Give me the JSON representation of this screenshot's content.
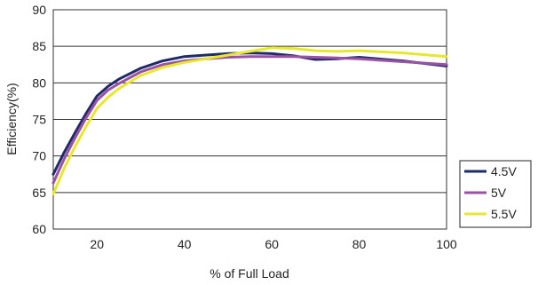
{
  "chart_data": {
    "type": "line",
    "xlabel": "% of Full Load",
    "ylabel": "Efficiency(%)",
    "xlim": [
      10,
      100
    ],
    "ylim": [
      60,
      90
    ],
    "x_ticks": [
      20,
      40,
      60,
      80,
      100
    ],
    "y_ticks": [
      60,
      65,
      70,
      75,
      80,
      85,
      90
    ],
    "grid": "horizontal",
    "legend_position": "right-bottom",
    "series": [
      {
        "name": "4.5V",
        "color": "#1f2a6b",
        "points": [
          [
            10,
            67.5
          ],
          [
            12.5,
            70.5
          ],
          [
            15,
            73.2
          ],
          [
            17.5,
            75.8
          ],
          [
            20,
            78.2
          ],
          [
            22.5,
            79.5
          ],
          [
            25,
            80.5
          ],
          [
            30,
            82.0
          ],
          [
            35,
            83.0
          ],
          [
            40,
            83.6
          ],
          [
            45,
            83.8
          ],
          [
            50,
            84.0
          ],
          [
            55,
            84.1
          ],
          [
            60,
            84.0
          ],
          [
            65,
            83.7
          ],
          [
            70,
            83.2
          ],
          [
            75,
            83.3
          ],
          [
            80,
            83.5
          ],
          [
            90,
            83.0
          ],
          [
            100,
            82.3
          ]
        ]
      },
      {
        "name": "5V",
        "color": "#9b52a3",
        "points": [
          [
            10,
            66.3
          ],
          [
            12.5,
            69.6
          ],
          [
            15,
            72.5
          ],
          [
            17.5,
            75.2
          ],
          [
            20,
            77.6
          ],
          [
            22.5,
            79.0
          ],
          [
            25,
            79.9
          ],
          [
            30,
            81.5
          ],
          [
            35,
            82.5
          ],
          [
            40,
            83.0
          ],
          [
            45,
            83.3
          ],
          [
            50,
            83.5
          ],
          [
            55,
            83.6
          ],
          [
            60,
            83.6
          ],
          [
            65,
            83.6
          ],
          [
            70,
            83.5
          ],
          [
            75,
            83.4
          ],
          [
            80,
            83.3
          ],
          [
            90,
            82.9
          ],
          [
            100,
            82.5
          ]
        ]
      },
      {
        "name": "5.5V",
        "color": "#e8e82a",
        "points": [
          [
            10,
            64.8
          ],
          [
            12.5,
            68.3
          ],
          [
            15,
            71.3
          ],
          [
            17.5,
            74.0
          ],
          [
            20,
            76.5
          ],
          [
            22.5,
            78.0
          ],
          [
            25,
            79.2
          ],
          [
            30,
            81.0
          ],
          [
            35,
            82.1
          ],
          [
            40,
            82.8
          ],
          [
            45,
            83.3
          ],
          [
            50,
            83.8
          ],
          [
            55,
            84.3
          ],
          [
            60,
            84.8
          ],
          [
            65,
            84.7
          ],
          [
            70,
            84.4
          ],
          [
            75,
            84.3
          ],
          [
            80,
            84.4
          ],
          [
            90,
            84.1
          ],
          [
            100,
            83.6
          ]
        ]
      }
    ]
  }
}
